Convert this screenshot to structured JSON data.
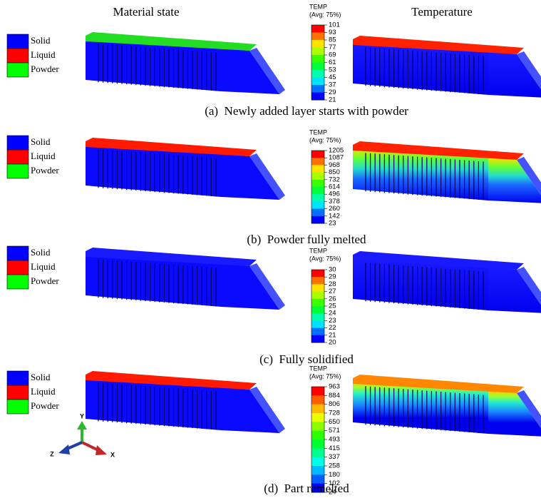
{
  "headers": {
    "material": "Material state",
    "temperature": "Temperature"
  },
  "panels": [
    {
      "legend": [
        "Solid",
        "Liquid",
        "Powder"
      ],
      "colorbar": {
        "title": "TEMP",
        "subtitle": "(Avg: 75%)",
        "ticks": [
          101,
          93,
          85,
          77,
          69,
          61,
          53,
          45,
          37,
          29,
          21
        ]
      },
      "caption": "(a)  Newly added layer starts with powder"
    },
    {
      "legend": [
        "Solid",
        "Liquid",
        "Powder"
      ],
      "colorbar": {
        "title": "TEMP",
        "subtitle": "(Avg: 75%)",
        "ticks": [
          1205,
          1087,
          968,
          850,
          732,
          614,
          496,
          378,
          260,
          142,
          23
        ]
      },
      "caption": "(b)  Powder fully melted"
    },
    {
      "legend": [
        "Solid",
        "Liquid",
        "Powder"
      ],
      "colorbar": {
        "title": "TEMP",
        "subtitle": "(Avg: 75%)",
        "ticks": [
          30,
          29,
          28,
          27,
          26,
          25,
          24,
          23,
          22,
          21,
          20
        ]
      },
      "caption": "(c)  Fully solidified"
    },
    {
      "legend": [
        "Solid",
        "Liquid",
        "Powder"
      ],
      "colorbar": {
        "title": "TEMP",
        "subtitle": "(Avg: 75%)",
        "ticks": [
          963,
          884,
          806,
          728,
          650,
          571,
          493,
          415,
          337,
          258,
          180,
          102,
          24
        ]
      },
      "caption": "(d)  Part remelted"
    }
  ],
  "triad": {
    "y": "Y",
    "z": "Z",
    "x": "X"
  }
}
